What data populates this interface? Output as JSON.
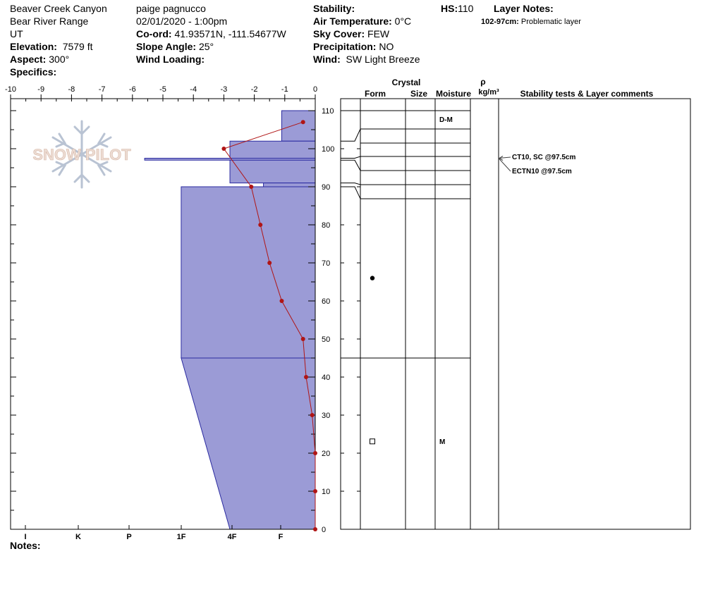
{
  "header": {
    "location": "Beaver Creek Canyon",
    "range": "Bear River Range",
    "state": "UT",
    "elevation_label": "Elevation:",
    "elevation_value": "7579 ft",
    "aspect_label": "Aspect:",
    "aspect_value": "300°",
    "specifics_label": "Specifics:",
    "observer": "paige pagnucco",
    "datetime": "02/01/2020 - 1:00pm",
    "coord_label": "Co-ord:",
    "coord_value": "41.93571N, -111.54677W",
    "slope_label": "Slope Angle:",
    "slope_value": "25°",
    "wind_loading_label": "Wind Loading:",
    "stability_label": "Stability:",
    "air_temp_label": "Air Temperature:",
    "air_temp_value": "0°C",
    "sky_label": "Sky Cover:",
    "sky_value": "FEW",
    "precip_label": "Precipitation:",
    "precip_value": "NO",
    "wind_label": "Wind:",
    "wind_value": "SW Light Breeze",
    "hs_label": "HS:",
    "hs_value": "110",
    "layer_notes_label": "Layer Notes:",
    "layer_note_range": "102-97cm:",
    "layer_note_text": "Problematic layer"
  },
  "notes_label": "Notes:",
  "watermark": "SNOW PILOT",
  "table_headers": {
    "crystal": "Crystal",
    "form": "Form",
    "size": "Size",
    "moisture": "Moisture",
    "rho": "ρ",
    "density_unit": "kg/m³",
    "stability": "Stability tests & Layer comments"
  },
  "colors": {
    "hardness_fill": "#9b9bd6",
    "hardness_stroke": "#2b2ba0",
    "temp_line": "#b01515",
    "grid": "#000000"
  },
  "chart_data": {
    "type": "snow-profile",
    "temperature_axis": {
      "ticks": [
        "-10",
        "-9",
        "-8",
        "-7",
        "-6",
        "-5",
        "-4",
        "-3",
        "-2",
        "-1",
        "0"
      ],
      "range": [
        -10,
        0
      ]
    },
    "depth_axis": {
      "ticks": [
        "0",
        "10",
        "20",
        "30",
        "40",
        "50",
        "60",
        "70",
        "80",
        "90",
        "100",
        "110"
      ],
      "range": [
        0,
        110
      ]
    },
    "hardness_axis": {
      "labels": [
        "I",
        "K",
        "P",
        "1F",
        "4F",
        "F"
      ]
    },
    "temperature_profile": [
      {
        "depth": 107,
        "temp": -0.4
      },
      {
        "depth": 100,
        "temp": -3.0
      },
      {
        "depth": 90,
        "temp": -2.1
      },
      {
        "depth": 80,
        "temp": -1.8
      },
      {
        "depth": 70,
        "temp": -1.5
      },
      {
        "depth": 60,
        "temp": -1.1
      },
      {
        "depth": 50,
        "temp": -0.4
      },
      {
        "depth": 40,
        "temp": -0.3
      },
      {
        "depth": 30,
        "temp": -0.1
      },
      {
        "depth": 20,
        "temp": 0.0
      },
      {
        "depth": 10,
        "temp": 0.0
      },
      {
        "depth": 0,
        "temp": 0.0
      }
    ],
    "hardness_layers": [
      {
        "top": 110,
        "bottom": 102,
        "hardness_temp_scale": -1.1
      },
      {
        "top": 102,
        "bottom": 97.5,
        "hardness_temp_scale": -2.8
      },
      {
        "top": 97.5,
        "bottom": 97,
        "hardness_temp_scale": -5.6
      },
      {
        "top": 97,
        "bottom": 91,
        "hardness_temp_scale": -2.8
      },
      {
        "top": 91,
        "bottom": 90,
        "hardness_temp_scale": -1.7
      },
      {
        "top": 90,
        "bottom": 45,
        "hardness_temp_scale": -4.4
      },
      {
        "top": 45,
        "bottom": 0,
        "hardness_temp_scale_top": -4.4,
        "hardness_temp_scale_bottom": -2.8
      }
    ],
    "layer_boundaries": [
      110,
      102,
      97.5,
      97,
      91,
      90,
      45,
      0
    ],
    "layers_table": [
      {
        "top": 110,
        "bottom": 102,
        "form": "",
        "moisture": "D-M"
      },
      {
        "top": 90,
        "bottom": 45,
        "form": "●",
        "moisture": ""
      },
      {
        "top": 45,
        "bottom": 0,
        "form": "□",
        "moisture": "M"
      }
    ],
    "stability_tests": [
      {
        "text": "CT10, SC @97.5cm",
        "depth": 97.5
      },
      {
        "text": "ECTN10 @97.5cm",
        "depth": 97.5
      }
    ]
  }
}
